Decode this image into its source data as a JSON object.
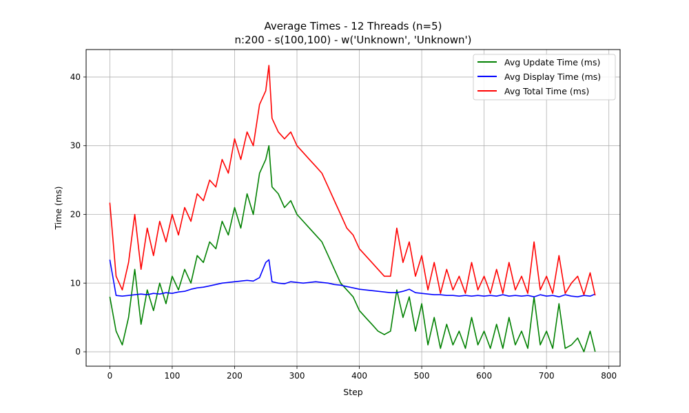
{
  "chart_data": {
    "type": "line",
    "title": "Average Times - 12 Threads (n=5)",
    "subtitle": "n:200 - s(100,100) - w('Unknown', 'Unknown')",
    "xlabel": "Step",
    "ylabel": "Time (ms)",
    "xlim": [
      -38,
      818
    ],
    "ylim": [
      -2.1,
      44
    ],
    "xticks": [
      0,
      100,
      200,
      300,
      400,
      500,
      600,
      700,
      800
    ],
    "yticks": [
      0,
      10,
      20,
      30,
      40
    ],
    "grid": true,
    "legend_position": "top-right",
    "x": [
      0,
      10,
      20,
      30,
      40,
      50,
      60,
      70,
      80,
      90,
      100,
      110,
      120,
      130,
      140,
      150,
      160,
      170,
      180,
      190,
      200,
      210,
      220,
      230,
      240,
      250,
      255,
      260,
      270,
      280,
      290,
      300,
      310,
      320,
      330,
      340,
      350,
      360,
      370,
      380,
      390,
      400,
      410,
      420,
      430,
      440,
      450,
      460,
      470,
      480,
      490,
      500,
      510,
      520,
      530,
      540,
      550,
      560,
      570,
      580,
      590,
      600,
      610,
      620,
      630,
      640,
      650,
      660,
      670,
      680,
      690,
      700,
      710,
      720,
      730,
      740,
      750,
      760,
      770,
      778
    ],
    "series": [
      {
        "name": "Avg Update Time (ms)",
        "color": "#008000",
        "values": [
          8,
          3,
          1,
          5,
          12,
          4,
          9,
          6,
          10,
          7,
          11,
          9,
          12,
          10,
          14,
          13,
          16,
          15,
          19,
          17,
          21,
          18,
          23,
          20,
          26,
          28,
          30,
          24,
          23,
          21,
          22,
          20,
          19,
          18,
          17,
          16,
          14,
          12,
          10,
          9,
          8,
          6,
          5,
          4,
          3,
          2.5,
          3,
          9,
          5,
          8,
          3,
          7,
          1,
          5,
          0.5,
          4,
          1,
          3,
          0.5,
          5,
          1,
          3,
          0.5,
          4,
          0.5,
          5,
          1,
          3,
          0.5,
          8,
          1,
          3,
          0.5,
          7,
          0.5,
          1,
          2,
          0,
          3,
          0
        ]
      },
      {
        "name": "Avg Display Time (ms)",
        "color": "#0000ff",
        "values": [
          13.4,
          8.2,
          8.1,
          8.2,
          8.3,
          8.4,
          8.3,
          8.5,
          8.4,
          8.6,
          8.5,
          8.7,
          8.8,
          9.1,
          9.3,
          9.4,
          9.6,
          9.8,
          10,
          10.1,
          10.2,
          10.3,
          10.4,
          10.3,
          10.8,
          13,
          13.4,
          10.2,
          10,
          9.9,
          10.2,
          10.1,
          10,
          10.1,
          10.2,
          10.1,
          10,
          9.8,
          9.7,
          9.5,
          9.3,
          9.1,
          9.0,
          8.9,
          8.8,
          8.7,
          8.6,
          8.6,
          8.8,
          9.1,
          8.6,
          8.5,
          8.4,
          8.3,
          8.3,
          8.2,
          8.2,
          8.1,
          8.2,
          8.1,
          8.2,
          8.1,
          8.2,
          8.1,
          8.3,
          8.1,
          8.2,
          8.1,
          8.2,
          8.0,
          8.3,
          8.1,
          8.2,
          8.0,
          8.3,
          8.1,
          8.0,
          8.2,
          8.1,
          8.4
        ]
      },
      {
        "name": "Avg Total Time (ms)",
        "color": "#ff0000",
        "values": [
          21.7,
          11,
          9,
          13,
          20,
          12,
          18,
          14,
          19,
          16,
          20,
          17,
          21,
          19,
          23,
          22,
          25,
          24,
          28,
          26,
          31,
          28,
          32,
          30,
          36,
          38,
          41.7,
          34,
          32,
          31,
          32,
          30,
          29,
          28,
          27,
          26,
          24,
          22,
          20,
          18,
          17,
          15,
          14,
          13,
          12,
          11,
          11,
          18,
          13,
          16,
          11,
          14,
          9,
          13,
          8.5,
          12,
          9,
          11,
          8.5,
          13,
          9,
          11,
          8.5,
          12,
          8.5,
          13,
          9,
          11,
          8.5,
          16,
          9,
          11,
          8.5,
          14,
          8.5,
          10,
          11,
          8.3,
          11.5,
          8.2
        ]
      }
    ]
  }
}
